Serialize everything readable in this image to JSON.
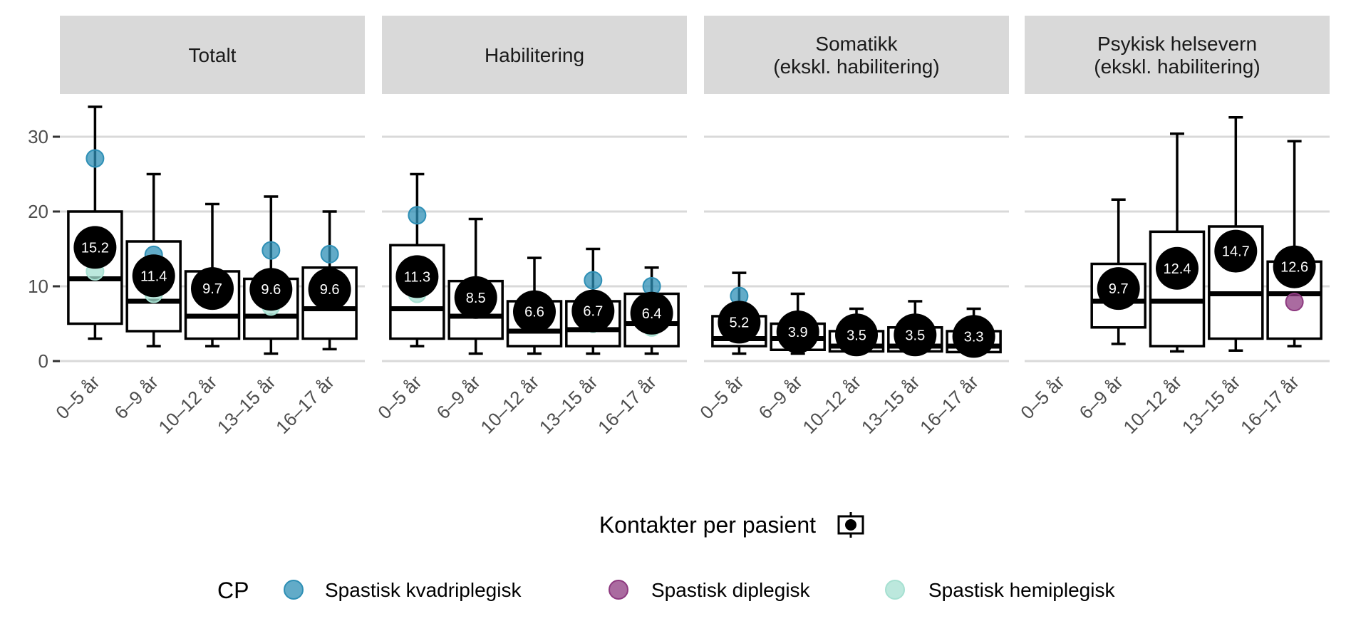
{
  "chart_data": {
    "type": "boxplot",
    "ylim": [
      0,
      35
    ],
    "yticks": [
      0,
      10,
      20,
      30
    ],
    "grid": "horizontal major",
    "categories": [
      "0–5 år",
      "6–9 år",
      "10–12 år",
      "13–15 år",
      "16–17 år"
    ],
    "legend": {
      "box_title": "Kontakter per pasient",
      "cp_title": "CP",
      "placement": "bottom",
      "groups": [
        {
          "name": "Spastisk kvadriplegisk",
          "color": "#2e8fb5"
        },
        {
          "name": "Spastisk diplegisk",
          "color": "#8e3a80"
        },
        {
          "name": "Spastisk hemiplegisk",
          "color": "#a6e0d1"
        }
      ]
    },
    "panels": [
      {
        "title": "Totalt",
        "boxes": [
          {
            "min": 3,
            "q1": 5,
            "median": 11,
            "q3": 20,
            "max": 34,
            "mean": 15.2,
            "mean_label": "15.2"
          },
          {
            "min": 2,
            "q1": 4,
            "median": 8,
            "q3": 16,
            "max": 25,
            "mean": 11.4,
            "mean_label": "11.4"
          },
          {
            "min": 2,
            "q1": 3,
            "median": 6,
            "q3": 12,
            "max": 21,
            "mean": 9.7,
            "mean_label": "9.7"
          },
          {
            "min": 1,
            "q1": 3,
            "median": 6,
            "q3": 11,
            "max": 22,
            "mean": 9.6,
            "mean_label": "9.6"
          },
          {
            "min": 1.6,
            "q1": 3,
            "median": 7,
            "q3": 12.5,
            "max": 20,
            "mean": 9.6,
            "mean_label": "9.6"
          }
        ],
        "points": [
          {
            "cat": 0,
            "group": 0,
            "value": 27.1
          },
          {
            "cat": 0,
            "group": 2,
            "value": 12
          },
          {
            "cat": 1,
            "group": 0,
            "value": 14.2
          },
          {
            "cat": 1,
            "group": 2,
            "value": 9
          },
          {
            "cat": 3,
            "group": 0,
            "value": 14.8
          },
          {
            "cat": 3,
            "group": 2,
            "value": 7.3
          },
          {
            "cat": 4,
            "group": 0,
            "value": 14.3
          }
        ]
      },
      {
        "title": "Habilitering",
        "boxes": [
          {
            "min": 2,
            "q1": 3,
            "median": 7,
            "q3": 15.5,
            "max": 25,
            "mean": 11.3,
            "mean_label": "11.3"
          },
          {
            "min": 1,
            "q1": 3,
            "median": 6,
            "q3": 10.7,
            "max": 19,
            "mean": 8.5,
            "mean_label": "8.5"
          },
          {
            "min": 1,
            "q1": 2,
            "median": 4,
            "q3": 8,
            "max": 13.8,
            "mean": 6.6,
            "mean_label": "6.6"
          },
          {
            "min": 1,
            "q1": 2,
            "median": 4.2,
            "q3": 8,
            "max": 15,
            "mean": 6.7,
            "mean_label": "6.7"
          },
          {
            "min": 1,
            "q1": 2,
            "median": 5,
            "q3": 9,
            "max": 12.5,
            "mean": 6.4,
            "mean_label": "6.4"
          }
        ],
        "points": [
          {
            "cat": 0,
            "group": 0,
            "value": 19.5
          },
          {
            "cat": 0,
            "group": 2,
            "value": 9
          },
          {
            "cat": 3,
            "group": 0,
            "value": 10.8
          },
          {
            "cat": 3,
            "group": 2,
            "value": 5
          },
          {
            "cat": 4,
            "group": 0,
            "value": 10
          },
          {
            "cat": 4,
            "group": 2,
            "value": 4.5
          }
        ]
      },
      {
        "title": "Somatikk\n(ekskl. habilitering)",
        "boxes": [
          {
            "min": 1,
            "q1": 2,
            "median": 3,
            "q3": 6,
            "max": 11.8,
            "mean": 5.2,
            "mean_label": "5.2"
          },
          {
            "min": 1,
            "q1": 1.5,
            "median": 3,
            "q3": 5,
            "max": 9,
            "mean": 3.9,
            "mean_label": "3.9"
          },
          {
            "min": 1,
            "q1": 1.3,
            "median": 2,
            "q3": 4,
            "max": 7,
            "mean": 3.5,
            "mean_label": "3.5"
          },
          {
            "min": 1,
            "q1": 1.3,
            "median": 2,
            "q3": 4.5,
            "max": 8,
            "mean": 3.5,
            "mean_label": "3.5"
          },
          {
            "min": 1,
            "q1": 1.2,
            "median": 2,
            "q3": 4,
            "max": 7,
            "mean": 3.3,
            "mean_label": "3.3"
          }
        ],
        "points": [
          {
            "cat": 0,
            "group": 0,
            "value": 8.7
          }
        ]
      },
      {
        "title": "Psykisk helsevern\n(ekskl. habilitering)",
        "boxes": [
          null,
          {
            "min": 2.3,
            "q1": 4.5,
            "median": 8,
            "q3": 13,
            "max": 21.6,
            "mean": 9.7,
            "mean_label": "9.7"
          },
          {
            "min": 1.3,
            "q1": 2,
            "median": 8,
            "q3": 17.3,
            "max": 30.4,
            "mean": 12.4,
            "mean_label": "12.4"
          },
          {
            "min": 1.4,
            "q1": 3,
            "median": 9,
            "q3": 18,
            "max": 32.6,
            "mean": 14.7,
            "mean_label": "14.7"
          },
          {
            "min": 2,
            "q1": 3,
            "median": 9,
            "q3": 13.3,
            "max": 29.4,
            "mean": 12.6,
            "mean_label": "12.6"
          }
        ],
        "points": [
          {
            "cat": 4,
            "group": 1,
            "value": 7.9
          }
        ]
      }
    ]
  }
}
